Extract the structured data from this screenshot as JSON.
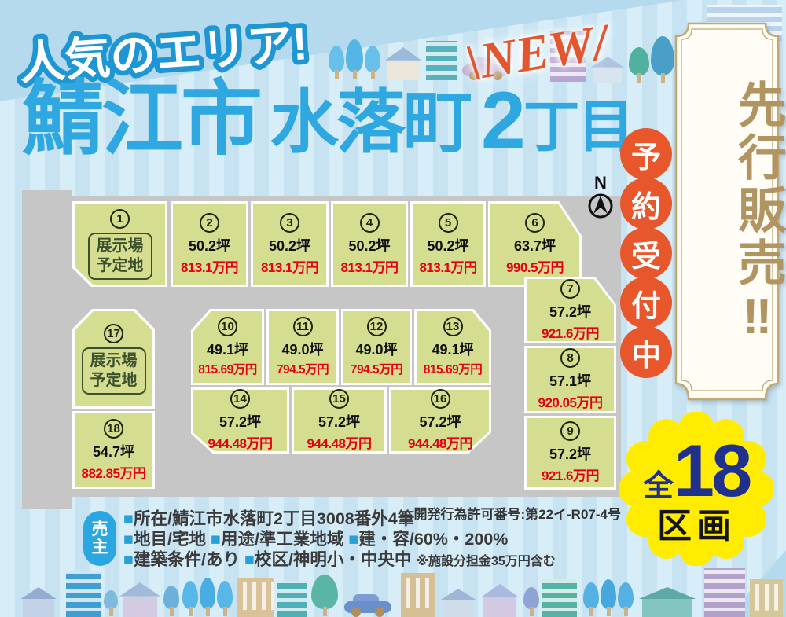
{
  "header": {
    "catch": "人気のエリア!",
    "city": "鯖江市",
    "town": "水落町",
    "chome_num": "2",
    "chome_suffix": "丁目",
    "new_label": "\\NEW/"
  },
  "banner": {
    "main_text": "先行販売‼",
    "reservation_chars": [
      "予",
      "約",
      "受",
      "付",
      "中"
    ]
  },
  "badge": {
    "prefix": "全",
    "number": "18",
    "suffix": "区画"
  },
  "compass": {
    "label": "N"
  },
  "map": {
    "permit": "開発行為許可番号:第22イ-R07-4号"
  },
  "lots": [
    {
      "num": "1",
      "label1": "展示場",
      "label2": "予定地"
    },
    {
      "num": "2",
      "tsubo": "50.2坪",
      "price": "813.1万円"
    },
    {
      "num": "3",
      "tsubo": "50.2坪",
      "price": "813.1万円"
    },
    {
      "num": "4",
      "tsubo": "50.2坪",
      "price": "813.1万円"
    },
    {
      "num": "5",
      "tsubo": "50.2坪",
      "price": "813.1万円"
    },
    {
      "num": "6",
      "tsubo": "63.7坪",
      "price": "990.5万円"
    },
    {
      "num": "7",
      "tsubo": "57.2坪",
      "price": "921.6万円"
    },
    {
      "num": "8",
      "tsubo": "57.1坪",
      "price": "920.05万円"
    },
    {
      "num": "9",
      "tsubo": "57.2坪",
      "price": "921.6万円"
    },
    {
      "num": "10",
      "tsubo": "49.1坪",
      "price": "815.69万円"
    },
    {
      "num": "11",
      "tsubo": "49.0坪",
      "price": "794.5万円"
    },
    {
      "num": "12",
      "tsubo": "49.0坪",
      "price": "794.5万円"
    },
    {
      "num": "13",
      "tsubo": "49.1坪",
      "price": "815.69万円"
    },
    {
      "num": "14",
      "tsubo": "57.2坪",
      "price": "944.48万円"
    },
    {
      "num": "15",
      "tsubo": "57.2坪",
      "price": "944.48万円"
    },
    {
      "num": "16",
      "tsubo": "57.2坪",
      "price": "944.48万円"
    },
    {
      "num": "17",
      "label1": "展示場",
      "label2": "予定地"
    },
    {
      "num": "18",
      "tsubo": "54.7坪",
      "price": "882.85万円"
    }
  ],
  "seller": {
    "badge_chars": [
      "売",
      "主"
    ],
    "lines": [
      "■所在/鯖江市水落町2丁目3008番外4筆",
      "■地目/宅地 ■用途/準工業地域 ■建・容/60%・200%",
      "■建築条件/あり ■校区/神明小・中央中"
    ],
    "note": "※施設分担金35万円含む"
  },
  "colors": {
    "title_blue": "#2fa7e0",
    "new_orange": "#e4562d",
    "banner_gold": "#b09563",
    "reservation_orange": "#e8562c",
    "badge_yellow": "#ffec00",
    "badge_navy": "#20308f",
    "lot_green": "#d5de90",
    "road_gray": "#c6c6c7",
    "price_red": "#e60012",
    "seller_blue": "#2aa7e1"
  },
  "decor_icons": [
    "tree-icon",
    "house-icon",
    "building-icon",
    "car-icon",
    "north-arrow-icon"
  ]
}
